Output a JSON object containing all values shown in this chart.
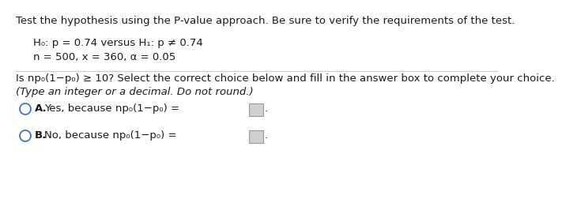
{
  "bg_color": "#ffffff",
  "text_color": "#1a1a1a",
  "circle_color": "#4472c4",
  "font_size": 9.5,
  "title": "Test the hypothesis using the P-value approach. Be sure to verify the requirements of the test.",
  "h0": "H₀: p = 0.74 versus H₁: p ≠ 0.74",
  "params": "n = 500, x = 360, α = 0.05",
  "q_line1": "Is np₀(1−p₀) ≥ 10? Select the correct choice below and fill in the answer box to complete your choice.",
  "q_line2": "(Type an integer or a decimal. Do not round.)",
  "opt_a": "Yes, because np₀(1−p₀) =",
  "opt_a_label": "A.",
  "opt_b": "No, because np₀(1−p₀) =",
  "opt_b_label": "B.",
  "box_color": "#d0d0d0",
  "box_edge": "#999999"
}
